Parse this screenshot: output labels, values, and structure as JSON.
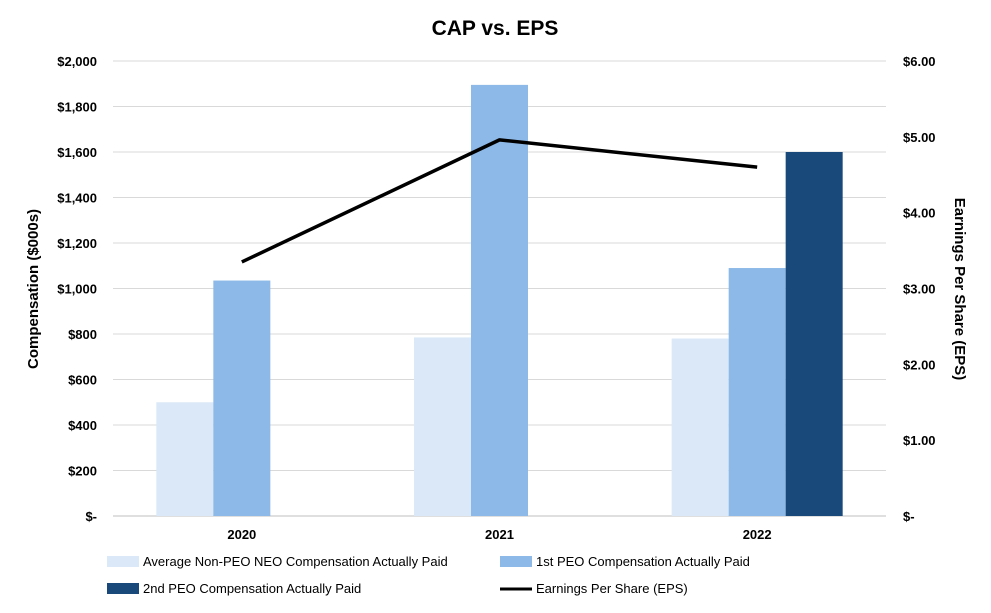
{
  "chart_data": {
    "type": "bar",
    "title": "CAP vs. EPS",
    "categories": [
      "2020",
      "2021",
      "2022"
    ],
    "ylabel": "Compensation ($000s)",
    "y2label": "Earnings Per Share (EPS)",
    "ylim": [
      0,
      2000
    ],
    "y2lim": [
      0,
      6
    ],
    "yticks": [
      0,
      200,
      400,
      600,
      800,
      1000,
      1200,
      1400,
      1600,
      1800,
      2000
    ],
    "yticklabels": [
      "$-",
      "$200",
      "$400",
      "$600",
      "$800",
      "$1,000",
      "$1,200",
      "$1,400",
      "$1,600",
      "$1,800",
      "$2,000"
    ],
    "y2ticks": [
      0,
      1,
      2,
      3,
      4,
      5,
      6
    ],
    "y2ticklabels": [
      "$-",
      "$1.00",
      "$2.00",
      "$3.00",
      "$4.00",
      "$5.00",
      "$6.00"
    ],
    "grid": true,
    "legend_position": "bottom",
    "series": [
      {
        "name": "Average Non-PEO NEO Compensation Actually Paid",
        "kind": "bar",
        "axis": "left",
        "color": "#dbe8f7",
        "values": [
          500,
          785,
          780
        ]
      },
      {
        "name": "1st PEO Compensation Actually Paid",
        "kind": "bar",
        "axis": "left",
        "color": "#8db9e8",
        "values": [
          1035,
          1895,
          1090
        ]
      },
      {
        "name": "2nd PEO Compensation Actually Paid",
        "kind": "bar",
        "axis": "left",
        "color": "#18497a",
        "values": [
          null,
          null,
          1600
        ]
      },
      {
        "name": "Earnings Per Share (EPS)",
        "kind": "line",
        "axis": "right",
        "color": "#000000",
        "values": [
          3.35,
          4.96,
          4.6
        ]
      }
    ]
  }
}
